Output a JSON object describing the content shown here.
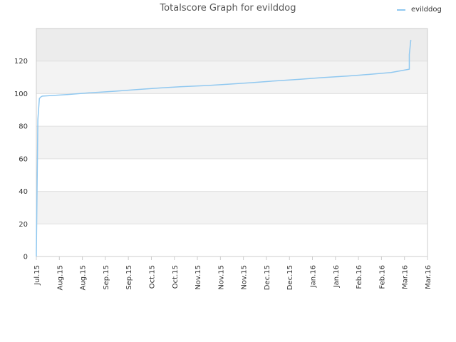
{
  "chart_data": {
    "type": "line",
    "title": "Totalscore Graph for evilddog",
    "xlabel": "",
    "ylabel": "",
    "x_ticks": [
      "Jul.15",
      "Aug.15",
      "Aug.15",
      "Sep.15",
      "Sep.15",
      "Oct.15",
      "Oct.15",
      "Nov.15",
      "Nov.15",
      "Nov.15",
      "Dec.15",
      "Dec.15",
      "Jan.16",
      "Jan.16",
      "Feb.16",
      "Feb.16",
      "Mar.16",
      "Mar.16"
    ],
    "y_ticks": [
      0,
      20,
      40,
      60,
      80,
      100,
      120
    ],
    "ylim": [
      0,
      140
    ],
    "xlim": [
      "2015-07-11",
      "2016-03-25"
    ],
    "grid": true,
    "legend_position": "top-right",
    "colors": {
      "series": "#90c8f0",
      "band_light": "#f3f3f3",
      "band_dark": "#ececec",
      "grid": "#e0e0e0",
      "axis": "#cccccc"
    },
    "series": [
      {
        "name": "evilddog",
        "x": [
          "2015-07-11",
          "2015-07-11",
          "2015-07-12",
          "2015-07-13",
          "2015-07-14",
          "2015-07-15",
          "2015-08-01",
          "2015-08-15",
          "2015-09-01",
          "2015-09-15",
          "2015-10-01",
          "2015-10-15",
          "2015-11-01",
          "2015-11-15",
          "2015-12-01",
          "2015-12-15",
          "2016-01-01",
          "2016-01-15",
          "2016-02-01",
          "2016-02-15",
          "2016-03-01",
          "2016-03-13",
          "2016-03-13",
          "2016-03-14"
        ],
        "y": [
          0,
          2,
          84,
          97,
          98,
          98.5,
          99.5,
          100.5,
          101.5,
          102.5,
          103.5,
          104.3,
          105,
          105.8,
          106.8,
          107.8,
          108.8,
          109.8,
          110.8,
          111.8,
          113,
          115,
          124,
          133
        ]
      }
    ]
  }
}
